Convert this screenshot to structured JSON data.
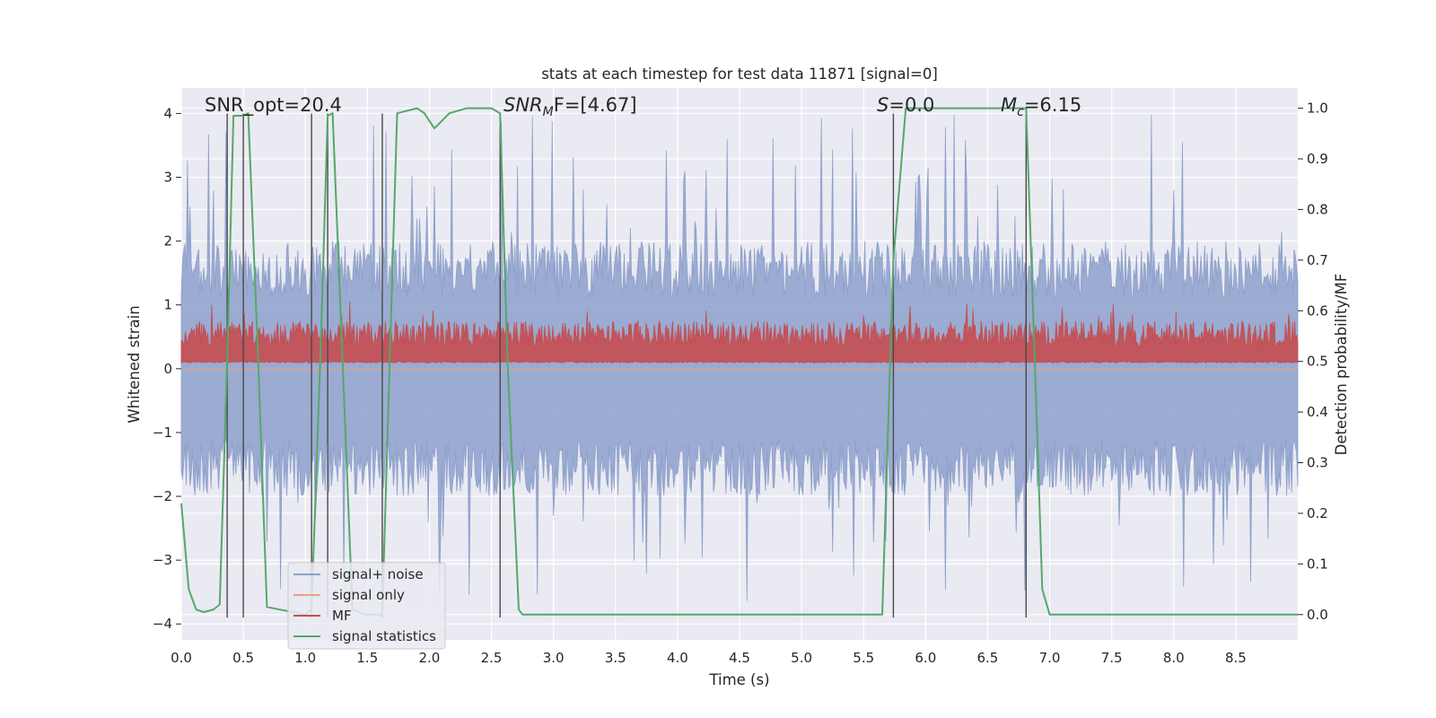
{
  "chart_data": {
    "type": "line",
    "title": "stats at each timestep for test data 11871 [signal=0]",
    "xlabel": "Time (s)",
    "ylabel": "Whitened strain",
    "y2label": "Detection probability/MF",
    "xlim": [
      0,
      9.0
    ],
    "ylim": [
      -4.25,
      4.4
    ],
    "y2lim": [
      -0.05,
      1.04
    ],
    "xticks": [
      "0.0",
      "0.5",
      "1.0",
      "1.5",
      "2.0",
      "2.5",
      "3.0",
      "3.5",
      "4.0",
      "4.5",
      "5.0",
      "5.5",
      "6.0",
      "6.5",
      "7.0",
      "7.5",
      "8.0",
      "8.5"
    ],
    "yticks": [
      "4",
      "3",
      "2",
      "1",
      "0",
      "−1",
      "−2",
      "−3",
      "−4"
    ],
    "y2ticks": [
      "1.0",
      "0.9",
      "0.8",
      "0.7",
      "0.6",
      "0.5",
      "0.4",
      "0.3",
      "0.2",
      "0.1",
      "0.0"
    ],
    "annotations": {
      "snr_opt": "SNR_opt=20.4",
      "snr_mf_base": "SNR",
      "snr_mf_sub": "M",
      "snr_mf_rest": "F=[4.67]",
      "s_label": "S",
      "s_value": "=0.0",
      "mc_base": "M",
      "mc_sub": "c",
      "mc_value": "=6.15"
    },
    "legend": {
      "position": "lower-left",
      "entries": [
        {
          "label": "signal+ noise",
          "color": "#8da0cb"
        },
        {
          "label": "signal only",
          "color": "#e9a07f"
        },
        {
          "label": "MF",
          "color": "#c44e52"
        },
        {
          "label": "signal statistics",
          "color": "#55a868"
        }
      ]
    },
    "vlines_x": [
      0.37,
      0.5,
      1.05,
      1.18,
      1.62,
      2.57,
      5.74,
      6.81
    ],
    "series": [
      {
        "name": "signal+ noise",
        "kind": "noise",
        "axis": "left",
        "approx_envelope": [
          -2.0,
          2.0
        ],
        "approx_peak_range": [
          -3.7,
          4.0
        ],
        "color": "#8da0cb"
      },
      {
        "name": "signal only",
        "kind": "flat",
        "axis": "left",
        "value": 0.0,
        "color": "#e9a07f"
      },
      {
        "name": "MF",
        "kind": "noise",
        "axis": "right",
        "approx_band": [
          0.5,
          0.58
        ],
        "approx_peak": 0.62,
        "color": "#c44e52"
      },
      {
        "name": "signal statistics",
        "axis": "right",
        "color": "#55a868",
        "x": [
          0.0,
          0.06,
          0.12,
          0.18,
          0.26,
          0.31,
          0.37,
          0.42,
          0.5,
          0.54,
          0.62,
          0.69,
          1.0,
          1.05,
          1.12,
          1.18,
          1.22,
          1.3,
          1.38,
          1.48,
          1.62,
          1.68,
          1.74,
          1.9,
          1.96,
          2.0,
          2.04,
          2.1,
          2.16,
          2.3,
          2.5,
          2.57,
          2.63,
          2.72,
          2.75,
          5.65,
          5.74,
          5.84,
          6.81,
          6.88,
          6.94,
          7.0,
          9.0
        ],
        "y": [
          0.22,
          0.05,
          0.01,
          0.005,
          0.01,
          0.02,
          0.5,
          0.985,
          0.985,
          0.99,
          0.5,
          0.015,
          0.0,
          0.01,
          0.5,
          0.985,
          0.99,
          0.5,
          0.01,
          0.0,
          0.0,
          0.5,
          0.99,
          1.0,
          0.99,
          0.975,
          0.96,
          0.975,
          0.99,
          1.0,
          1.0,
          0.99,
          0.5,
          0.01,
          0.0,
          0.0,
          0.7,
          1.0,
          1.0,
          0.5,
          0.05,
          0.0,
          0.0
        ]
      }
    ]
  }
}
